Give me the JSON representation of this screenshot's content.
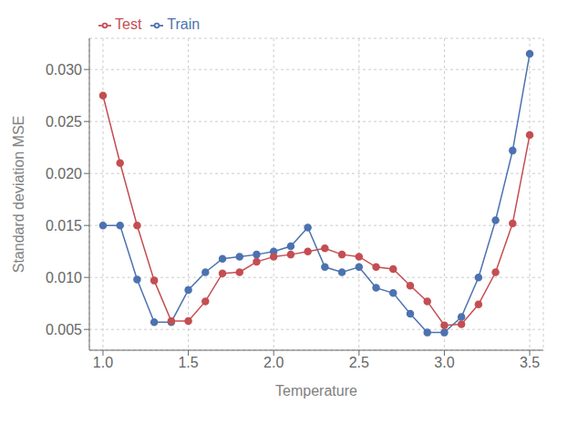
{
  "chart_data": {
    "type": "line",
    "x_label": "Temperature",
    "y_label": "Standard deviation MSE",
    "x": [
      1.0,
      1.1,
      1.2,
      1.3,
      1.4,
      1.5,
      1.6,
      1.7,
      1.8,
      1.9,
      2.0,
      2.1,
      2.2,
      2.3,
      2.4,
      2.5,
      2.6,
      2.7,
      2.8,
      2.9,
      3.0,
      3.1,
      3.2,
      3.3,
      3.4,
      3.5
    ],
    "series": [
      {
        "name": "Train",
        "color": "#4C72B0",
        "marker": "circle",
        "values": [
          0.015,
          0.015,
          0.0098,
          0.0057,
          0.0057,
          0.0088,
          0.0105,
          0.0118,
          0.012,
          0.0122,
          0.0125,
          0.013,
          0.0148,
          0.011,
          0.0105,
          0.011,
          0.009,
          0.0085,
          0.0065,
          0.0047,
          0.0047,
          0.0062,
          0.01,
          0.0155,
          0.0222,
          0.0315
        ]
      },
      {
        "name": "Test",
        "color": "#C44E52",
        "marker": "circle",
        "values": [
          0.0275,
          0.021,
          0.015,
          0.0097,
          0.0058,
          0.0058,
          0.0077,
          0.0104,
          0.0105,
          0.0115,
          0.012,
          0.0122,
          0.0125,
          0.0128,
          0.0122,
          0.012,
          0.011,
          0.0108,
          0.0092,
          0.0077,
          0.0054,
          0.0055,
          0.0074,
          0.0105,
          0.0152,
          0.0237
        ]
      }
    ],
    "xlim": [
      0.92,
      3.58
    ],
    "ylim": [
      0.003,
      0.033
    ],
    "xticks": [
      {
        "value": 1.0,
        "label": "1.0"
      },
      1.5,
      {
        "value": 2.0,
        "label": "2.0"
      },
      2.5,
      {
        "value": 3.0,
        "label": "3.0"
      },
      3.5
    ],
    "yticks": [
      0.005,
      {
        "value": 0.01,
        "label": "0.010"
      },
      0.015,
      {
        "value": 0.02,
        "label": "0.020"
      },
      0.025,
      {
        "value": 0.03,
        "label": "0.030"
      }
    ],
    "grid": true,
    "legend": "upper left"
  }
}
